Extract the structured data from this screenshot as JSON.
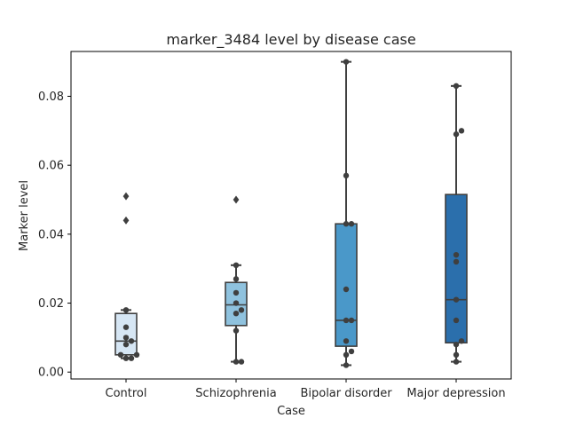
{
  "chart_data": {
    "type": "box",
    "title": "marker_3484 level by disease case",
    "xlabel": "Case",
    "ylabel": "Marker level",
    "ylim": [
      -0.002,
      0.093
    ],
    "yticks": [
      0.0,
      0.02,
      0.04,
      0.06,
      0.08
    ],
    "ytick_labels": [
      "0.00",
      "0.02",
      "0.04",
      "0.06",
      "0.08"
    ],
    "grid": false,
    "categories": [
      "Control",
      "Schizophrenia",
      "Bipolar disorder",
      "Major depression"
    ],
    "colors": [
      "#d6e6f4",
      "#8fc2de",
      "#4a98c9",
      "#2b6fac"
    ],
    "boxes": [
      {
        "q1": 0.005,
        "median": 0.009,
        "q3": 0.017,
        "whisker_low": 0.004,
        "whisker_high": 0.018,
        "outliers": [
          0.051,
          0.044
        ]
      },
      {
        "q1": 0.0135,
        "median": 0.0195,
        "q3": 0.026,
        "whisker_low": 0.003,
        "whisker_high": 0.031,
        "outliers": [
          0.05
        ]
      },
      {
        "q1": 0.0075,
        "median": 0.015,
        "q3": 0.043,
        "whisker_low": 0.002,
        "whisker_high": 0.09,
        "outliers": []
      },
      {
        "q1": 0.0085,
        "median": 0.021,
        "q3": 0.0515,
        "whisker_low": 0.003,
        "whisker_high": 0.083,
        "outliers": []
      }
    ],
    "points": [
      [
        0.018,
        0.013,
        0.01,
        0.009,
        0.008,
        0.005,
        0.005,
        0.004,
        0.004
      ],
      [
        0.031,
        0.027,
        0.023,
        0.02,
        0.018,
        0.017,
        0.012,
        0.003,
        0.003
      ],
      [
        0.09,
        0.057,
        0.043,
        0.043,
        0.024,
        0.015,
        0.015,
        0.009,
        0.006,
        0.005,
        0.002
      ],
      [
        0.083,
        0.07,
        0.069,
        0.034,
        0.032,
        0.021,
        0.015,
        0.009,
        0.008,
        0.005,
        0.003
      ]
    ]
  }
}
